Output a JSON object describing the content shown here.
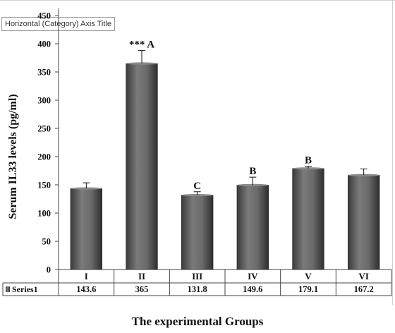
{
  "tooltip": "Horizontal (Category) Axis Title",
  "chart_data": {
    "type": "bar",
    "categories": [
      "I",
      "II",
      "III",
      "IV",
      "V",
      "VI"
    ],
    "series": [
      {
        "name": "Series1",
        "values": [
          143.6,
          365,
          131.8,
          149.6,
          179.1,
          167.2
        ]
      }
    ],
    "error_bars": [
      10,
      23,
      6,
      14,
      4,
      11
    ],
    "annotations": [
      "",
      "*** A",
      "C",
      "B",
      "B",
      ""
    ],
    "ylabel": "Serum IL33 levels (pg/ml)",
    "xlabel": "The experimental Groups",
    "ylim": [
      0,
      450
    ],
    "yticks": [
      0,
      50,
      100,
      150,
      200,
      250,
      300,
      350,
      400,
      450
    ],
    "grid": false,
    "legend": "data table below axis",
    "bar_color": "#555555"
  }
}
